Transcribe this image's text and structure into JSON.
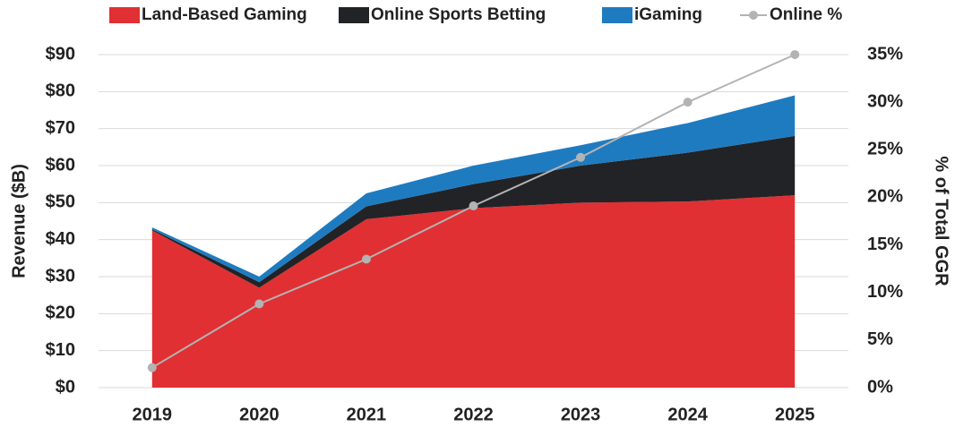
{
  "chart_data": {
    "type": "area",
    "stacked": true,
    "categories": [
      "2019",
      "2020",
      "2021",
      "2022",
      "2023",
      "2024",
      "2025"
    ],
    "series": [
      {
        "name": "Land-Based Gaming",
        "color": "#e03033",
        "values": [
          42.5,
          27,
          45.5,
          48.5,
          50,
          50.3,
          52
        ]
      },
      {
        "name": "Online Sports Betting",
        "color": "#222326",
        "values": [
          0.3,
          1.5,
          3.5,
          6.5,
          10,
          13.2,
          16
        ]
      },
      {
        "name": "iGaming",
        "color": "#1f7bc0",
        "values": [
          0.5,
          1.5,
          3.5,
          5,
          5.5,
          8,
          11
        ]
      },
      {
        "name": "Online %",
        "color": "#b3b3b3",
        "type": "line",
        "axis": "y2",
        "values": [
          2.1,
          8.8,
          13.5,
          19.1,
          24.2,
          30,
          35
        ]
      }
    ],
    "ylabel": "Revenue ($B)",
    "y2label": "% of Total GGR",
    "ylim": [
      0,
      90
    ],
    "yticks": [
      {
        "value": 0,
        "label": "$0"
      },
      {
        "value": 10,
        "label": "$10"
      },
      {
        "value": 20,
        "label": "$20"
      },
      {
        "value": 30,
        "label": "$30"
      },
      {
        "value": 40,
        "label": "$40"
      },
      {
        "value": 50,
        "label": "$50"
      },
      {
        "value": 60,
        "label": "$60"
      },
      {
        "value": 70,
        "label": "$70"
      },
      {
        "value": 80,
        "label": "$80"
      },
      {
        "value": 90,
        "label": "$90"
      }
    ],
    "y2lim": [
      0,
      35
    ],
    "y2ticks": [
      {
        "value": 0,
        "label": "0%"
      },
      {
        "value": 5,
        "label": "5%"
      },
      {
        "value": 10,
        "label": "10%"
      },
      {
        "value": 15,
        "label": "15%"
      },
      {
        "value": 20,
        "label": "20%"
      },
      {
        "value": 25,
        "label": "25%"
      },
      {
        "value": 30,
        "label": "30%"
      },
      {
        "value": 35,
        "label": "35%"
      }
    ],
    "grid": true,
    "legend": "top"
  }
}
